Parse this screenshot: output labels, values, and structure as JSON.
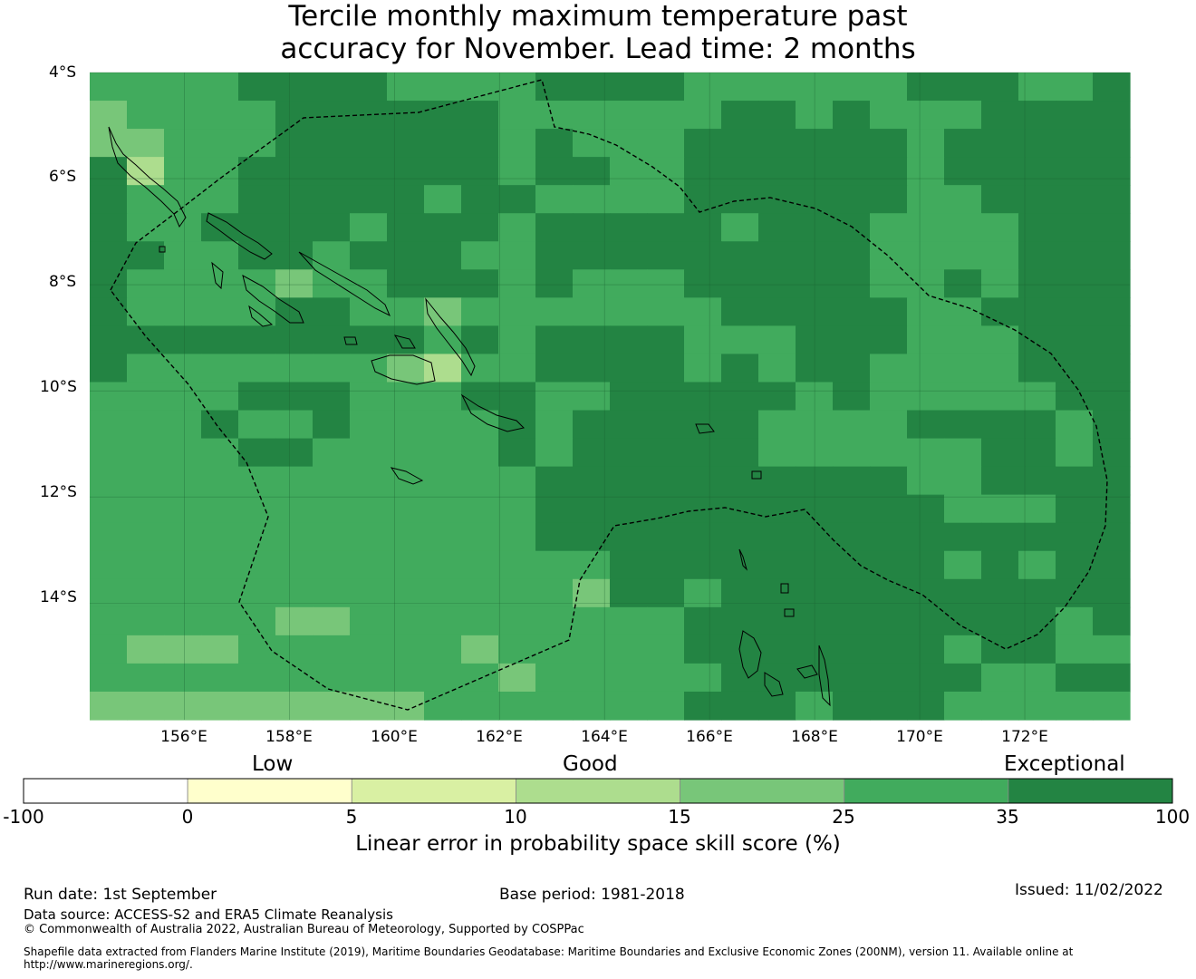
{
  "title_line1": "Tercile monthly maximum temperature past",
  "title_line2": "accuracy for November. Lead time: 2 months",
  "map": {
    "lon_min": 154.2,
    "lon_max": 174.0,
    "lat_min": -16.2,
    "lat_max": -4.0,
    "cell_deg": 0.833,
    "lat_labels": [
      "4°S",
      "6°S",
      "8°S",
      "10°S",
      "12°S",
      "14°S"
    ],
    "lat_values": [
      -4,
      -6,
      -8,
      -10,
      -12,
      -14
    ],
    "lon_labels": [
      "156°E",
      "158°E",
      "160°E",
      "162°E",
      "164°E",
      "166°E",
      "168°E",
      "170°E",
      "172°E"
    ],
    "lon_values": [
      156,
      158,
      160,
      162,
      164,
      166,
      168,
      170,
      172
    ],
    "grid_rows": [
      "5555666655556666555555666556",
      "4555566666655555566565556666",
      "4455566666656555666666566666",
      "6355666666656655666666566666",
      "6555666665665555666666556666",
      "6556666566656666656665555666",
      "6655665666556666666665555666",
      "6555545566656555666665565666",
      "6555566554555555566666556666",
      "6666666665656666555666555666",
      "6555555543556666565665555666",
      "5555666555665566666565555566",
      "5556556555565666665555666656",
      "5555665555565666665555556656",
      "5555555555556666666666556666",
      "5555555555556666666666655566",
      "5555555555556666666666666666",
      "5555555555555566666666656566",
      "5555555555555466566666666666",
      "5555544555555555666666666656",
      "5444555555455555666666656655",
      "5555555555545555566666665566",
      "4444444445555555666566655555"
    ],
    "palette": {
      "0": "#ffffff",
      "1": "#ffffcc",
      "2": "#d9f0a3",
      "3": "#addd8e",
      "4": "#78c679",
      "5": "#41ab5d",
      "6": "#238443"
    }
  },
  "colorbar": {
    "categories": [
      "Low",
      "Good",
      "Exceptional"
    ],
    "ticks": [
      "-100",
      "0",
      "5",
      "10",
      "15",
      "25",
      "35",
      "100"
    ],
    "colors": [
      "#ffffff",
      "#ffffcc",
      "#d9f0a3",
      "#addd8e",
      "#78c679",
      "#41ab5d",
      "#238443"
    ],
    "label": "Linear error in probability space skill score (%)"
  },
  "footer": {
    "run_date": "Run date: 1st September",
    "base_period": "Base period: 1981-2018",
    "issued": "Issued: 11/02/2022",
    "data_source": "Data source: ACCESS-S2 and ERA5 Climate Reanalysis",
    "copyright": "© Commonwealth of Australia 2022, Australian Bureau of Meteorology, Supported by COSPPac",
    "shapefile_line1": "Shapefile data extracted from Flanders Marine Institute (2019), Maritime Boundaries Geodatabase: Maritime Boundaries and Exclusive Economic Zones (200NM), version 11. Available online at",
    "shapefile_line2": "http://www.marineregions.org/."
  }
}
